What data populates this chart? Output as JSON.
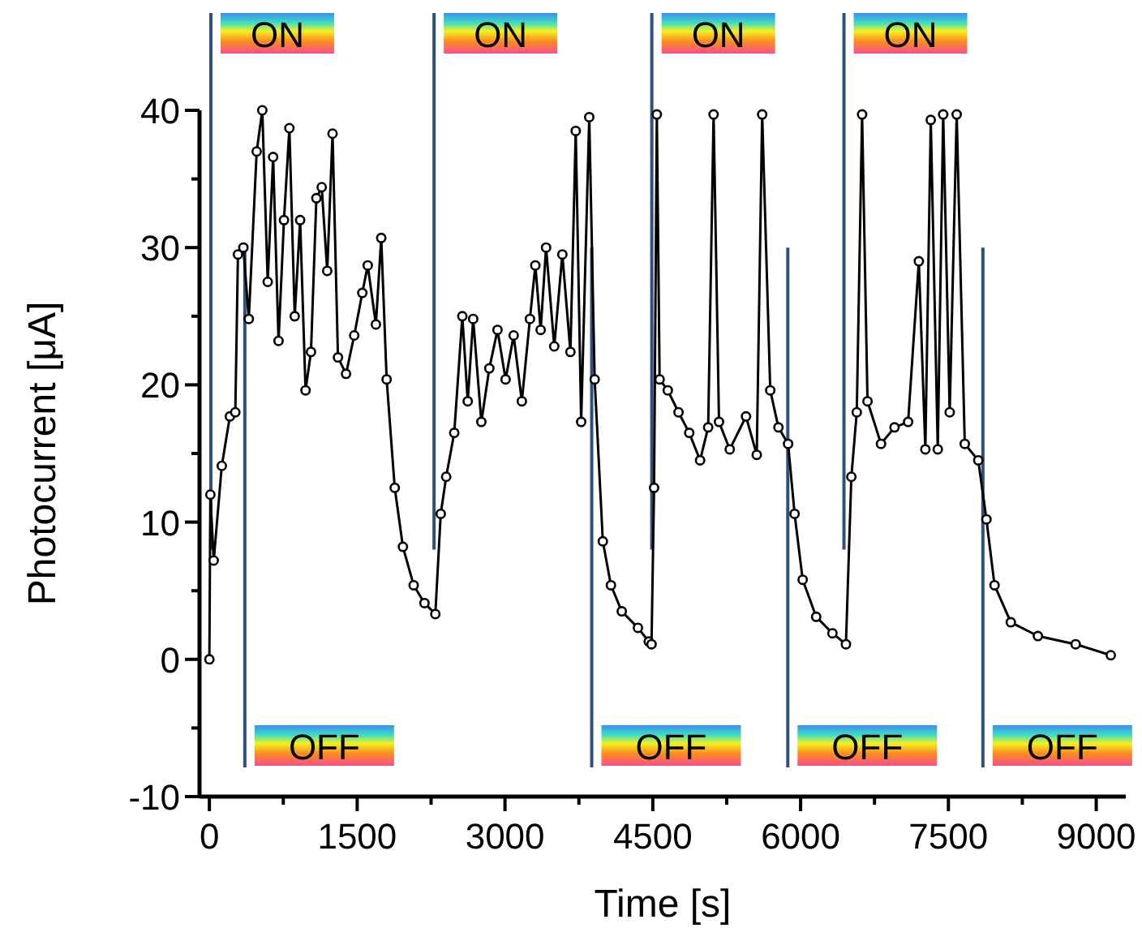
{
  "chart_data": {
    "type": "line",
    "xlabel": "Time [s]",
    "ylabel": "Photocurrent [μA]",
    "xlim": [
      -100,
      9300
    ],
    "ylim": [
      -10,
      40
    ],
    "xticks": [
      0,
      {
        "value": 750,
        "label": null
      },
      1500,
      {
        "value": 2250,
        "label": null
      },
      3000,
      {
        "value": 3750,
        "label": null
      },
      4500,
      {
        "value": 5250,
        "label": null
      },
      6000,
      {
        "value": 6750,
        "label": null
      },
      7500,
      {
        "value": 8250,
        "label": null
      },
      9000
    ],
    "yticks": [
      -10,
      {
        "value": -5,
        "label": null
      },
      0,
      {
        "value": 5,
        "label": null
      },
      10,
      {
        "value": 15,
        "label": null
      },
      20,
      {
        "value": 25,
        "label": null
      },
      30,
      {
        "value": 35,
        "label": null
      },
      40
    ],
    "marker": "circle",
    "line_style": "solid",
    "series": [
      {
        "color": "#000000",
        "x": [
          0,
          10,
          44,
          126,
          208,
          263,
          290,
          345,
          400,
          480,
          537,
          592,
          647,
          702,
          757,
          812,
          866,
          921,
          976,
          1031,
          1086,
          1140,
          1196,
          1250,
          1305,
          1387,
          1470,
          1552,
          1607,
          1690,
          1744,
          1799,
          1881,
          1964,
          2073,
          2183,
          2293,
          2348,
          2403,
          2485,
          2567,
          2622,
          2677,
          2760,
          2841,
          2924,
          3006,
          3088,
          3171,
          3253,
          3308,
          3362,
          3417,
          3500,
          3582,
          3664,
          3718,
          3773,
          3855,
          3910,
          3993,
          4075,
          4185,
          4349,
          4459,
          4487,
          4513,
          4541,
          4569,
          4652,
          4761,
          4870,
          4980,
          5062,
          5117,
          5172,
          5281,
          5446,
          5555,
          5610,
          5692,
          5775,
          5873,
          5939,
          6021,
          6158,
          6323,
          6460,
          6515,
          6570,
          6624,
          6679,
          6816,
          6953,
          7091,
          7200,
          7266,
          7321,
          7392,
          7447,
          7513,
          7584,
          7666,
          7803,
          7886,
          7968,
          8133,
          8408,
          8791,
          9148
        ],
        "values": [
          0,
          12,
          7.2,
          14.1,
          17.7,
          18,
          29.5,
          30,
          24.8,
          37,
          40,
          27.5,
          36.6,
          23.2,
          32,
          38.7,
          25,
          32,
          19.6,
          22.4,
          33.6,
          34.4,
          28.3,
          38.3,
          22,
          20.8,
          23.6,
          26.7,
          28.7,
          24.4,
          30.7,
          20.4,
          12.5,
          8.2,
          5.4,
          4.1,
          3.3,
          10.6,
          13.3,
          16.5,
          25,
          18.8,
          24.8,
          17.3,
          21.2,
          24,
          20.4,
          23.6,
          18.8,
          24.8,
          28.7,
          24,
          30,
          22.8,
          29.5,
          22.4,
          38.5,
          17.3,
          39.5,
          20.4,
          8.6,
          5.4,
          3.5,
          2.3,
          1.3,
          1.1,
          12.5,
          39.7,
          20.4,
          19.6,
          18,
          16.5,
          14.5,
          16.9,
          39.7,
          17.3,
          15.3,
          17.7,
          14.9,
          39.7,
          19.6,
          16.9,
          15.7,
          10.6,
          5.8,
          3.1,
          1.9,
          1.1,
          13.3,
          18,
          39.7,
          18.8,
          15.7,
          16.9,
          17.3,
          29,
          15.3,
          39.3,
          15.3,
          39.7,
          18,
          39.7,
          15.7,
          14.5,
          10.2,
          5.4,
          2.7,
          1.7,
          1.1,
          0.3
        ]
      }
    ],
    "ref_lines": [
      {
        "axis": "x",
        "value": 15,
        "label": "ON",
        "color": "#2f4f7f"
      },
      {
        "axis": "x",
        "value": 360,
        "label": "OFF",
        "color": "#2f4f7f"
      },
      {
        "axis": "x",
        "value": 2280,
        "label": "ON",
        "color": "#2f4f7f"
      },
      {
        "axis": "x",
        "value": 3880,
        "label": "OFF",
        "color": "#2f4f7f"
      },
      {
        "axis": "x",
        "value": 4490,
        "label": "ON",
        "color": "#2f4f7f"
      },
      {
        "axis": "x",
        "value": 5870,
        "label": "OFF",
        "color": "#2f4f7f"
      },
      {
        "axis": "x",
        "value": 6440,
        "label": "ON",
        "color": "#2f4f7f"
      },
      {
        "axis": "x",
        "value": 7850,
        "label": "OFF",
        "color": "#2f4f7f"
      }
    ]
  }
}
